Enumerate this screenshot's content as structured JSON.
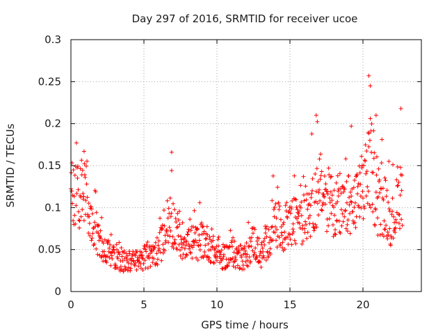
{
  "chart_data": {
    "type": "scatter",
    "title": "Day 297 of 2016, SRMTID for receiver ucoe",
    "xlabel": "GPS time / hours",
    "ylabel": "SRMTID / TECUs",
    "xlim": [
      0,
      24
    ],
    "ylim": [
      0,
      0.3
    ],
    "grid": true,
    "marker": "+",
    "series_color": "#ff0000",
    "x_ticks": [
      0,
      5,
      10,
      15,
      20
    ],
    "x_tick_labels": [
      "0",
      "5",
      "10",
      "15",
      "20"
    ],
    "y_ticks": [
      0,
      0.05,
      0.1,
      0.15,
      0.2,
      0.25,
      0.3
    ],
    "y_tick_labels": [
      "0",
      "0.05",
      "0.1",
      "0.15",
      "0.2",
      "0.25",
      "0.3"
    ],
    "x_step_hours": 0.025,
    "x_end_hours": 22.7,
    "trend_hours": [
      0,
      0.5,
      1,
      1.5,
      2,
      2.5,
      3,
      3.5,
      4,
      4.5,
      5,
      5.5,
      6,
      6.5,
      7,
      7.5,
      8,
      8.5,
      9,
      9.5,
      10,
      10.5,
      11,
      11.5,
      12,
      12.5,
      13,
      13.5,
      14,
      14.5,
      15,
      15.5,
      16,
      16.5,
      17,
      17.5,
      18,
      18.5,
      19,
      19.5,
      20,
      20.5,
      21,
      21.5,
      22,
      22.7
    ],
    "trend_values": [
      0.11,
      0.11,
      0.12,
      0.08,
      0.06,
      0.045,
      0.04,
      0.035,
      0.035,
      0.035,
      0.04,
      0.04,
      0.05,
      0.06,
      0.08,
      0.06,
      0.06,
      0.055,
      0.06,
      0.055,
      0.04,
      0.04,
      0.045,
      0.04,
      0.04,
      0.06,
      0.04,
      0.06,
      0.08,
      0.07,
      0.08,
      0.08,
      0.09,
      0.1,
      0.12,
      0.11,
      0.1,
      0.09,
      0.1,
      0.1,
      0.12,
      0.15,
      0.1,
      0.1,
      0.08,
      0.12
    ],
    "spikes": [
      {
        "x": 0.9,
        "y": 0.167
      },
      {
        "x": 6.9,
        "y": 0.166
      },
      {
        "x": 16.8,
        "y": 0.21
      },
      {
        "x": 19.2,
        "y": 0.197
      },
      {
        "x": 20.4,
        "y": 0.257
      },
      {
        "x": 20.5,
        "y": 0.245
      },
      {
        "x": 20.9,
        "y": 0.21
      },
      {
        "x": 22.6,
        "y": 0.218
      }
    ]
  }
}
